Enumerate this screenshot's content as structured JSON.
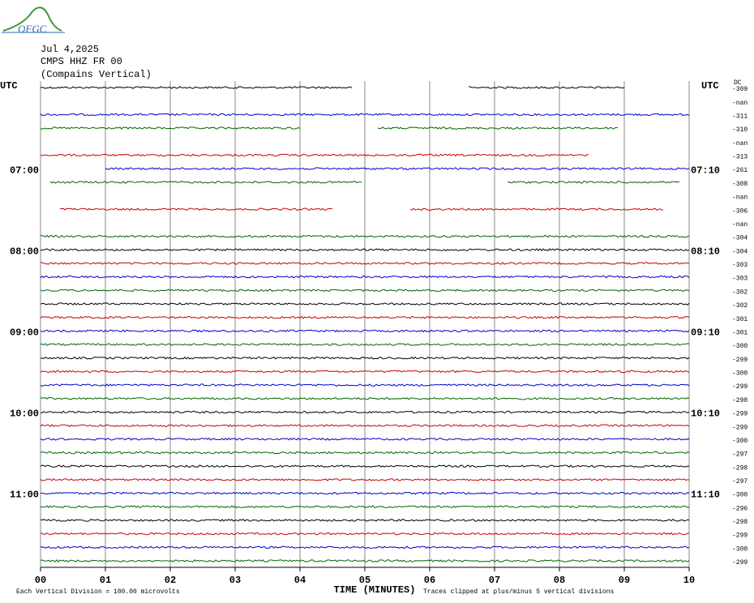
{
  "chart_data": {
    "type": "helicorder",
    "logo_text": "OFGC",
    "title_lines": [
      "Jul 4,2025",
      "CMPS HHZ FR 00",
      "(Compains Vertical)"
    ],
    "left_header": "UTC",
    "right_header": "UTC",
    "dc_header": "DC",
    "xlabel": "TIME (MINUTES)",
    "footnote_left": "Each Vertical Division =  100.00 microvolts",
    "footnote_right": "Traces clipped at plus/minus 5 vertical divisions",
    "xlim": [
      0,
      10
    ],
    "xticks": [
      {
        "value": 0,
        "label": "00"
      },
      {
        "value": 1,
        "label": "01"
      },
      {
        "value": 2,
        "label": "02"
      },
      {
        "value": 3,
        "label": "03"
      },
      {
        "value": 4,
        "label": "04"
      },
      {
        "value": 5,
        "label": "05"
      },
      {
        "value": 6,
        "label": "06"
      },
      {
        "value": 7,
        "label": "07"
      },
      {
        "value": 8,
        "label": "08"
      },
      {
        "value": 9,
        "label": "09"
      },
      10
    ],
    "grid": true,
    "colors": [
      "#000000",
      "#cc0000",
      "#0000cc",
      "#006600"
    ],
    "traces": [
      {
        "dc": "-309",
        "segments": [
          [
            0,
            4.8
          ],
          [
            6.6,
            9
          ]
        ]
      },
      {
        "dc": "-nan",
        "segments": []
      },
      {
        "dc": "-311",
        "segments": [
          [
            0,
            10
          ]
        ]
      },
      {
        "dc": "-310",
        "segments": [
          [
            0,
            4
          ],
          [
            5.2,
            8.9
          ]
        ]
      },
      {
        "dc": "-nan",
        "segments": []
      },
      {
        "dc": "-313",
        "segments": [
          [
            0,
            8.45
          ]
        ]
      },
      {
        "dc": "-261",
        "segments": [
          [
            1,
            10
          ]
        ],
        "left": "07:00",
        "right": "07:10"
      },
      {
        "dc": "-308",
        "segments": [
          [
            0.15,
            4.95
          ],
          [
            7.2,
            9.85
          ]
        ]
      },
      {
        "dc": "-nan",
        "segments": []
      },
      {
        "dc": "-306",
        "segments": [
          [
            0.3,
            4.5
          ],
          [
            5.7,
            9.6
          ]
        ]
      },
      {
        "dc": "-nan",
        "segments": []
      },
      {
        "dc": "-304",
        "segments": [
          [
            0,
            10
          ]
        ]
      },
      {
        "dc": "-304",
        "segments": [
          [
            0,
            10
          ]
        ],
        "left": "08:00",
        "right": "08:10"
      },
      {
        "dc": "-303",
        "segments": [
          [
            0,
            10
          ]
        ]
      },
      {
        "dc": "-303",
        "segments": [
          [
            0,
            10
          ]
        ]
      },
      {
        "dc": "-302",
        "segments": [
          [
            0,
            10
          ]
        ]
      },
      {
        "dc": "-302",
        "segments": [
          [
            0,
            10
          ]
        ]
      },
      {
        "dc": "-301",
        "segments": [
          [
            0,
            10
          ]
        ]
      },
      {
        "dc": "-301",
        "segments": [
          [
            0,
            10
          ]
        ],
        "left": "09:00",
        "right": "09:10"
      },
      {
        "dc": "-300",
        "segments": [
          [
            0,
            10
          ]
        ]
      },
      {
        "dc": "-299",
        "segments": [
          [
            0,
            10
          ]
        ]
      },
      {
        "dc": "-300",
        "segments": [
          [
            0,
            10
          ]
        ]
      },
      {
        "dc": "-299",
        "segments": [
          [
            0,
            10
          ]
        ]
      },
      {
        "dc": "-298",
        "segments": [
          [
            0,
            10
          ]
        ]
      },
      {
        "dc": "-299",
        "segments": [
          [
            0,
            10
          ]
        ],
        "left": "10:00",
        "right": "10:10"
      },
      {
        "dc": "-299",
        "segments": [
          [
            0,
            10
          ]
        ]
      },
      {
        "dc": "-300",
        "segments": [
          [
            0,
            10
          ]
        ]
      },
      {
        "dc": "-297",
        "segments": [
          [
            0,
            10
          ]
        ]
      },
      {
        "dc": "-298",
        "segments": [
          [
            0,
            10
          ]
        ]
      },
      {
        "dc": "-297",
        "segments": [
          [
            0,
            10
          ]
        ]
      },
      {
        "dc": "-300",
        "segments": [
          [
            0,
            10
          ]
        ],
        "left": "11:00",
        "right": "11:10"
      },
      {
        "dc": "-296",
        "segments": [
          [
            0,
            10
          ]
        ]
      },
      {
        "dc": "-298",
        "segments": [
          [
            0,
            10
          ]
        ]
      },
      {
        "dc": "-299",
        "segments": [
          [
            0,
            10
          ]
        ]
      },
      {
        "dc": "-300",
        "segments": [
          [
            0,
            10
          ]
        ]
      },
      {
        "dc": "-299",
        "segments": [
          [
            0,
            10
          ]
        ]
      }
    ]
  }
}
